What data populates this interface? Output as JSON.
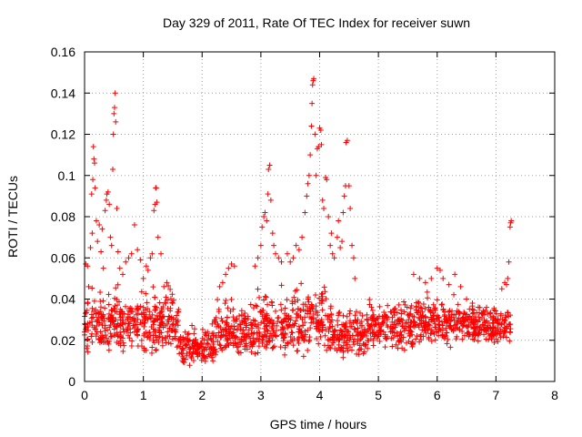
{
  "chart_data": {
    "type": "scatter",
    "title": "Day 329 of 2011, Rate Of TEC Index for receiver suwn",
    "xlabel": "GPS time / hours",
    "ylabel": "ROTI / TECUs",
    "xlim": [
      0,
      8
    ],
    "ylim": [
      0,
      0.16
    ],
    "xticks": [
      "0",
      "1",
      "2",
      "3",
      "4",
      "5",
      "6",
      "7",
      "8"
    ],
    "yticks": [
      "0",
      "0.02",
      "0.04",
      "0.06",
      "0.08",
      "0.1",
      "0.12",
      "0.14",
      "0.16"
    ],
    "grid": true,
    "marker": "+",
    "color": "#ff0000",
    "series": [
      {
        "name": "ROTI",
        "points": [
          [
            0.02,
            0.057
          ],
          [
            0.05,
            0.056
          ],
          [
            0.07,
            0.046
          ],
          [
            0.1,
            0.065
          ],
          [
            0.12,
            0.091
          ],
          [
            0.13,
            0.072
          ],
          [
            0.14,
            0.098
          ],
          [
            0.15,
            0.114
          ],
          [
            0.16,
            0.108
          ],
          [
            0.17,
            0.106
          ],
          [
            0.18,
            0.094
          ],
          [
            0.2,
            0.078
          ],
          [
            0.22,
            0.068
          ],
          [
            0.25,
            0.076
          ],
          [
            0.28,
            0.063
          ],
          [
            0.3,
            0.074
          ],
          [
            0.32,
            0.055
          ],
          [
            0.35,
            0.083
          ],
          [
            0.37,
            0.088
          ],
          [
            0.38,
            0.091
          ],
          [
            0.4,
            0.092
          ],
          [
            0.42,
            0.086
          ],
          [
            0.44,
            0.07
          ],
          [
            0.46,
            0.066
          ],
          [
            0.48,
            0.103
          ],
          [
            0.49,
            0.12
          ],
          [
            0.5,
            0.13
          ],
          [
            0.51,
            0.133
          ],
          [
            0.52,
            0.14
          ],
          [
            0.53,
            0.126
          ],
          [
            0.55,
            0.084
          ],
          [
            0.57,
            0.063
          ],
          [
            0.6,
            0.055
          ],
          [
            0.65,
            0.052
          ],
          [
            0.7,
            0.058
          ],
          [
            0.75,
            0.06
          ],
          [
            0.8,
            0.062
          ],
          [
            0.85,
            0.076
          ],
          [
            0.9,
            0.064
          ],
          [
            0.95,
            0.059
          ],
          [
            1.0,
            0.05
          ],
          [
            1.05,
            0.056
          ],
          [
            1.08,
            0.054
          ],
          [
            1.12,
            0.06
          ],
          [
            1.15,
            0.062
          ],
          [
            1.18,
            0.083
          ],
          [
            1.2,
            0.086
          ],
          [
            1.21,
            0.094
          ],
          [
            1.22,
            0.094
          ],
          [
            1.23,
            0.087
          ],
          [
            1.25,
            0.07
          ],
          [
            1.3,
            0.062
          ],
          [
            1.35,
            0.046
          ],
          [
            1.4,
            0.048
          ],
          [
            1.5,
            0.038
          ],
          [
            1.6,
            0.035
          ],
          [
            2.3,
            0.046
          ],
          [
            2.35,
            0.048
          ],
          [
            2.4,
            0.052
          ],
          [
            2.45,
            0.055
          ],
          [
            2.5,
            0.057
          ],
          [
            2.55,
            0.056
          ],
          [
            2.9,
            0.056
          ],
          [
            2.95,
            0.06
          ],
          [
            3.0,
            0.066
          ],
          [
            3.02,
            0.075
          ],
          [
            3.05,
            0.08
          ],
          [
            3.07,
            0.082
          ],
          [
            3.1,
            0.078
          ],
          [
            3.12,
            0.091
          ],
          [
            3.13,
            0.103
          ],
          [
            3.15,
            0.105
          ],
          [
            3.17,
            0.088
          ],
          [
            3.2,
            0.072
          ],
          [
            3.22,
            0.066
          ],
          [
            3.25,
            0.062
          ],
          [
            3.3,
            0.06
          ],
          [
            3.35,
            0.058
          ],
          [
            3.45,
            0.062
          ],
          [
            3.5,
            0.058
          ],
          [
            3.55,
            0.06
          ],
          [
            3.6,
            0.066
          ],
          [
            3.65,
            0.064
          ],
          [
            3.7,
            0.07
          ],
          [
            3.75,
            0.082
          ],
          [
            3.78,
            0.09
          ],
          [
            3.8,
            0.096
          ],
          [
            3.82,
            0.1
          ],
          [
            3.84,
            0.11
          ],
          [
            3.86,
            0.124
          ],
          [
            3.87,
            0.135
          ],
          [
            3.88,
            0.144
          ],
          [
            3.89,
            0.146
          ],
          [
            3.9,
            0.147
          ],
          [
            3.92,
            0.12
          ],
          [
            3.94,
            0.1
          ],
          [
            3.96,
            0.113
          ],
          [
            3.98,
            0.114
          ],
          [
            4.0,
            0.123
          ],
          [
            4.02,
            0.122
          ],
          [
            4.03,
            0.115
          ],
          [
            4.05,
            0.088
          ],
          [
            4.07,
            0.084
          ],
          [
            4.1,
            0.099
          ],
          [
            4.12,
            0.098
          ],
          [
            4.15,
            0.08
          ],
          [
            4.18,
            0.066
          ],
          [
            4.2,
            0.072
          ],
          [
            4.22,
            0.062
          ],
          [
            4.25,
            0.06
          ],
          [
            4.3,
            0.07
          ],
          [
            4.32,
            0.078
          ],
          [
            4.35,
            0.065
          ],
          [
            4.38,
            0.068
          ],
          [
            4.4,
            0.082
          ],
          [
            4.42,
            0.09
          ],
          [
            4.44,
            0.095
          ],
          [
            4.45,
            0.116
          ],
          [
            4.47,
            0.117
          ],
          [
            4.5,
            0.095
          ],
          [
            4.52,
            0.084
          ],
          [
            4.55,
            0.066
          ],
          [
            4.58,
            0.06
          ],
          [
            4.6,
            0.05
          ],
          [
            5.6,
            0.052
          ],
          [
            5.7,
            0.05
          ],
          [
            5.8,
            0.048
          ],
          [
            5.9,
            0.05
          ],
          [
            6.0,
            0.055
          ],
          [
            6.05,
            0.054
          ],
          [
            6.1,
            0.05
          ],
          [
            6.2,
            0.047
          ],
          [
            6.3,
            0.052
          ],
          [
            6.4,
            0.046
          ],
          [
            6.5,
            0.04
          ],
          [
            6.6,
            0.038
          ],
          [
            6.7,
            0.036
          ],
          [
            7.1,
            0.045
          ],
          [
            7.15,
            0.048
          ],
          [
            7.18,
            0.047
          ],
          [
            7.2,
            0.05
          ],
          [
            7.22,
            0.058
          ],
          [
            7.24,
            0.075
          ],
          [
            7.25,
            0.077
          ],
          [
            7.26,
            0.078
          ]
        ]
      }
    ],
    "dense_bands": [
      {
        "x": [
          0.0,
          0.9
        ],
        "y": [
          0.013,
          0.05
        ]
      },
      {
        "x": [
          0.9,
          1.6
        ],
        "y": [
          0.012,
          0.052
        ]
      },
      {
        "x": [
          1.6,
          2.2
        ],
        "y": [
          0.007,
          0.03
        ]
      },
      {
        "x": [
          2.2,
          2.9
        ],
        "y": [
          0.01,
          0.045
        ]
      },
      {
        "x": [
          2.9,
          3.6
        ],
        "y": [
          0.012,
          0.05
        ]
      },
      {
        "x": [
          3.6,
          4.2
        ],
        "y": [
          0.012,
          0.055
        ]
      },
      {
        "x": [
          4.2,
          4.8
        ],
        "y": [
          0.01,
          0.04
        ]
      },
      {
        "x": [
          4.8,
          5.6
        ],
        "y": [
          0.014,
          0.045
        ]
      },
      {
        "x": [
          5.6,
          6.3
        ],
        "y": [
          0.016,
          0.048
        ]
      },
      {
        "x": [
          6.3,
          6.9
        ],
        "y": [
          0.018,
          0.04
        ]
      },
      {
        "x": [
          6.9,
          7.25
        ],
        "y": [
          0.017,
          0.04
        ]
      }
    ]
  }
}
